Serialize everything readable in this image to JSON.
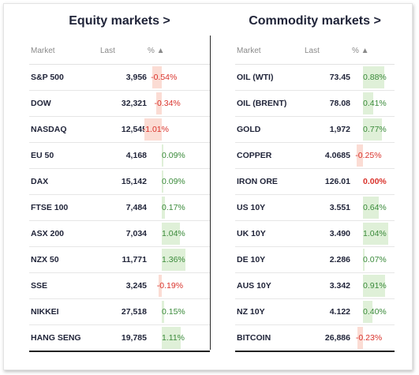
{
  "equity": {
    "title": "Equity markets >",
    "headers": {
      "market": "Market",
      "last": "Last",
      "pct": "% ▲"
    },
    "rows": [
      {
        "name": "S&P 500",
        "last": "3,956",
        "pct": "-0.54%",
        "value": -0.54
      },
      {
        "name": "DOW",
        "last": "32,321",
        "pct": "-0.34%",
        "value": -0.34
      },
      {
        "name": "NASDAQ",
        "last": "12,545",
        "pct": "-1.01%",
        "value": -1.01
      },
      {
        "name": "EU 50",
        "last": "4,168",
        "pct": "0.09%",
        "value": 0.09
      },
      {
        "name": "DAX",
        "last": "15,142",
        "pct": "0.09%",
        "value": 0.09
      },
      {
        "name": "FTSE 100",
        "last": "7,484",
        "pct": "0.17%",
        "value": 0.17
      },
      {
        "name": "ASX 200",
        "last": "7,034",
        "pct": "1.04%",
        "value": 1.04
      },
      {
        "name": "NZX 50",
        "last": "11,771",
        "pct": "1.36%",
        "value": 1.36
      },
      {
        "name": "SSE",
        "last": "3,245",
        "pct": "-0.19%",
        "value": -0.19
      },
      {
        "name": "NIKKEI",
        "last": "27,518",
        "pct": "0.15%",
        "value": 0.15
      },
      {
        "name": "HANG SENG",
        "last": "19,785",
        "pct": "1.11%",
        "value": 1.11
      }
    ]
  },
  "commodity": {
    "title": "Commodity markets >",
    "headers": {
      "market": "Market",
      "last": "Last",
      "pct": "% ▲"
    },
    "rows": [
      {
        "name": "OIL (WTI)",
        "last": "73.45",
        "pct": "0.88%",
        "value": 0.88
      },
      {
        "name": "OIL (BRENT)",
        "last": "78.08",
        "pct": "0.41%",
        "value": 0.41
      },
      {
        "name": "GOLD",
        "last": "1,972",
        "pct": "0.77%",
        "value": 0.77
      },
      {
        "name": "COPPER",
        "last": "4.0685",
        "pct": "-0.25%",
        "value": -0.25
      },
      {
        "name": "IRON ORE",
        "last": "126.01",
        "pct": "0.00%",
        "value": 0.0
      },
      {
        "name": "US 10Y",
        "last": "3.551",
        "pct": "0.64%",
        "value": 0.64
      },
      {
        "name": "UK 10Y",
        "last": "3.490",
        "pct": "1.04%",
        "value": 1.04
      },
      {
        "name": "DE 10Y",
        "last": "2.286",
        "pct": "0.07%",
        "value": 0.07
      },
      {
        "name": "AUS 10Y",
        "last": "3.342",
        "pct": "0.91%",
        "value": 0.91
      },
      {
        "name": "NZ 10Y",
        "last": "4.122",
        "pct": "0.40%",
        "value": 0.4
      },
      {
        "name": "BITCOIN",
        "last": "26,886",
        "pct": "-0.23%",
        "value": -0.23
      }
    ]
  },
  "colors": {
    "positive_text": "#3a8a3a",
    "positive_bar": "#dff0d8",
    "negative_text": "#d9322b",
    "negative_bar": "#fbdcd4",
    "title": "#1f2338"
  }
}
